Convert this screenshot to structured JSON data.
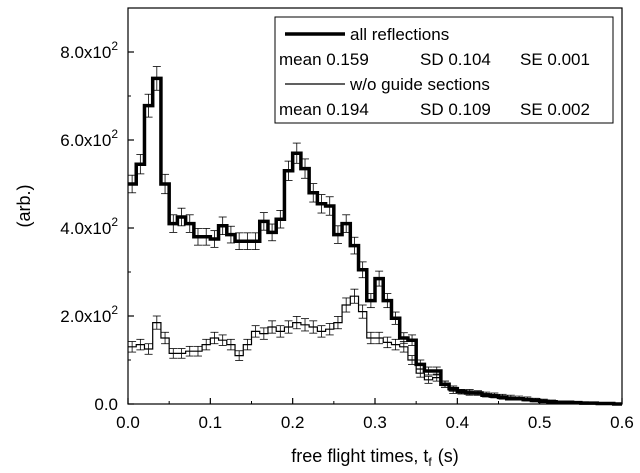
{
  "chart_data": {
    "type": "line",
    "style": "step-histogram-with-error-bars",
    "xlabel": "free flight times, t",
    "xlabel_sub": "f",
    "xlabel_unit": "(s)",
    "ylabel": "(arb.)",
    "xlim": [
      0,
      0.6
    ],
    "ylim": [
      0,
      900
    ],
    "x_ticks": [
      0,
      0.1,
      0.2,
      0.3,
      0.4,
      0.5,
      0.6
    ],
    "x_tick_labels": [
      "0.0",
      "0.1",
      "0.2",
      "0.3",
      "0.4",
      "0.5",
      "0.6"
    ],
    "y_ticks": [
      0,
      200,
      400,
      600,
      800
    ],
    "y_tick_labels": [
      {
        "base": "0.0",
        "exp": ""
      },
      {
        "base": "2.0x10",
        "exp": "2"
      },
      {
        "base": "4.0x10",
        "exp": "2"
      },
      {
        "base": "6.0x10",
        "exp": "2"
      },
      {
        "base": "8.0x10",
        "exp": "2"
      }
    ],
    "grid": false,
    "legend_position": "top-right",
    "bin_width": 0.01,
    "x": [
      0.005,
      0.015,
      0.025,
      0.035,
      0.045,
      0.055,
      0.065,
      0.075,
      0.085,
      0.095,
      0.105,
      0.115,
      0.125,
      0.135,
      0.145,
      0.155,
      0.165,
      0.175,
      0.185,
      0.195,
      0.205,
      0.215,
      0.225,
      0.235,
      0.245,
      0.255,
      0.265,
      0.275,
      0.285,
      0.295,
      0.305,
      0.315,
      0.325,
      0.335,
      0.345,
      0.355,
      0.365,
      0.375,
      0.385,
      0.395,
      0.405,
      0.415,
      0.425,
      0.435,
      0.445,
      0.455,
      0.465,
      0.475,
      0.485,
      0.495,
      0.505,
      0.515,
      0.525,
      0.535,
      0.545,
      0.555,
      0.565,
      0.575,
      0.585,
      0.595
    ],
    "series": [
      {
        "name": "all reflections",
        "legend_stats": {
          "mean": "mean 0.159",
          "sd": "SD 0.104",
          "se": "SE 0.001"
        },
        "color": "#000000",
        "values": [
          500,
          545,
          678,
          740,
          500,
          410,
          425,
          410,
          380,
          380,
          375,
          405,
          385,
          370,
          370,
          370,
          415,
          390,
          420,
          530,
          570,
          535,
          480,
          455,
          450,
          385,
          410,
          360,
          305,
          235,
          285,
          235,
          195,
          150,
          145,
          90,
          75,
          75,
          45,
          35,
          28,
          25,
          25,
          20,
          18,
          15,
          12,
          12,
          10,
          8,
          6,
          5,
          4,
          4,
          3,
          2,
          2,
          1,
          1,
          0
        ],
        "errors": [
          20,
          22,
          26,
          27,
          22,
          20,
          20,
          20,
          19,
          19,
          19,
          20,
          19,
          19,
          19,
          19,
          20,
          19,
          20,
          22,
          23,
          22,
          21,
          21,
          21,
          20,
          20,
          19,
          18,
          16,
          17,
          16,
          14,
          12,
          12,
          10,
          9,
          9,
          7,
          6,
          5,
          5,
          5,
          4,
          4,
          4,
          3,
          3,
          3,
          3,
          2,
          2,
          2,
          2,
          2,
          1,
          1,
          1,
          1,
          1
        ]
      },
      {
        "name": "w/o guide sections",
        "legend_stats": {
          "mean": "mean 0.194",
          "sd": "SD 0.109",
          "se": "SE 0.002"
        },
        "color": "#000000",
        "values": [
          130,
          135,
          125,
          185,
          150,
          115,
          115,
          120,
          120,
          135,
          150,
          145,
          135,
          110,
          135,
          165,
          160,
          175,
          165,
          175,
          185,
          180,
          175,
          165,
          170,
          185,
          225,
          245,
          210,
          150,
          150,
          140,
          135,
          130,
          100,
          70,
          55,
          60,
          45,
          30,
          28,
          28,
          25,
          22,
          20,
          18,
          16,
          14,
          12,
          10,
          8,
          6,
          5,
          4,
          3,
          3,
          2,
          1,
          1,
          0
        ],
        "errors": [
          12,
          12,
          12,
          15,
          13,
          11,
          11,
          11,
          11,
          12,
          13,
          12,
          12,
          11,
          12,
          13,
          13,
          14,
          13,
          14,
          14,
          14,
          14,
          13,
          13,
          14,
          16,
          16,
          15,
          13,
          13,
          12,
          12,
          12,
          10,
          9,
          8,
          8,
          7,
          6,
          5,
          5,
          5,
          5,
          5,
          4,
          4,
          4,
          4,
          3,
          3,
          3,
          2,
          2,
          2,
          2,
          1,
          1,
          1,
          1
        ]
      }
    ]
  }
}
